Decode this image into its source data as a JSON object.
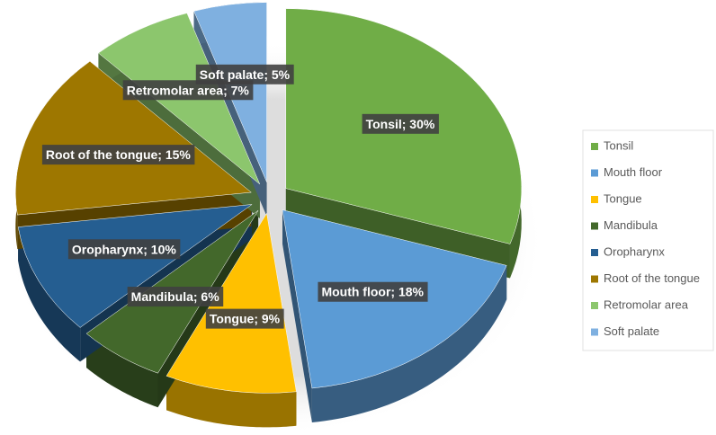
{
  "chart_data": {
    "type": "pie",
    "categories": [
      "Tonsil",
      "Mouth floor",
      "Tongue",
      "Mandibula",
      "Oropharynx",
      "Root of the tongue",
      "Retromolar area",
      "Soft palate"
    ],
    "values": [
      30,
      18,
      9,
      6,
      10,
      15,
      7,
      5
    ],
    "value_labels": [
      "Tonsil; 30%",
      "Mouth floor; 18%",
      "Tongue; 9%",
      "Mandibula; 6%",
      "Oropharynx; 10%",
      "Root of the tongue; 15%",
      "Retromolar area; 7%",
      "Soft palate; 5%"
    ],
    "colors": [
      "#70ad47",
      "#5b9bd5",
      "#ffc000",
      "#43682b",
      "#255e91",
      "#9e7700",
      "#8cc66d",
      "#7fb0e0"
    ],
    "legend": "right"
  }
}
